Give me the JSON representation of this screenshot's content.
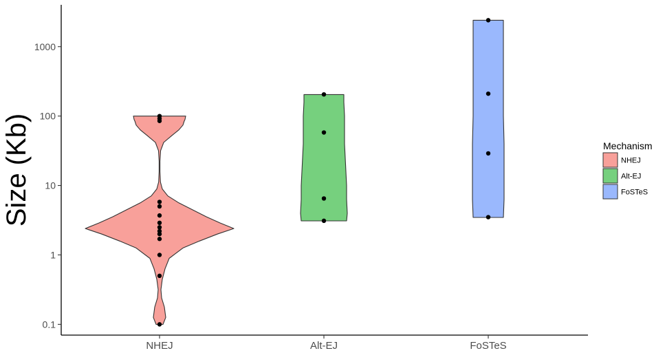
{
  "chart_data": {
    "type": "violin",
    "ylabel": "Size (Kb)",
    "xlabel": "",
    "y_scale": "log10",
    "ylim": [
      0.07,
      4000
    ],
    "y_ticks": [
      0.1,
      1,
      10,
      100,
      1000
    ],
    "y_tick_labels": [
      "0.1",
      "1",
      "10",
      "100",
      "1000"
    ],
    "categories": [
      "NHEJ",
      "Alt-EJ",
      "FoSTeS"
    ],
    "grid": false,
    "legend": {
      "title": "Mechanism",
      "position": "right",
      "entries": [
        "NHEJ",
        "Alt-EJ",
        "FoSTeS"
      ]
    },
    "series": [
      {
        "name": "NHEJ",
        "color": "#F8A09A",
        "points": [
          0.1,
          0.5,
          1.0,
          1.7,
          2.0,
          2.2,
          2.5,
          2.9,
          3.7,
          5.0,
          5.8,
          85,
          92,
          100
        ]
      },
      {
        "name": "Alt-EJ",
        "color": "#76D07E",
        "points": [
          3.1,
          6.5,
          58,
          205
        ]
      },
      {
        "name": "FoSTeS",
        "color": "#9AB8FD",
        "points": [
          3.5,
          29,
          210,
          2400
        ]
      }
    ]
  }
}
